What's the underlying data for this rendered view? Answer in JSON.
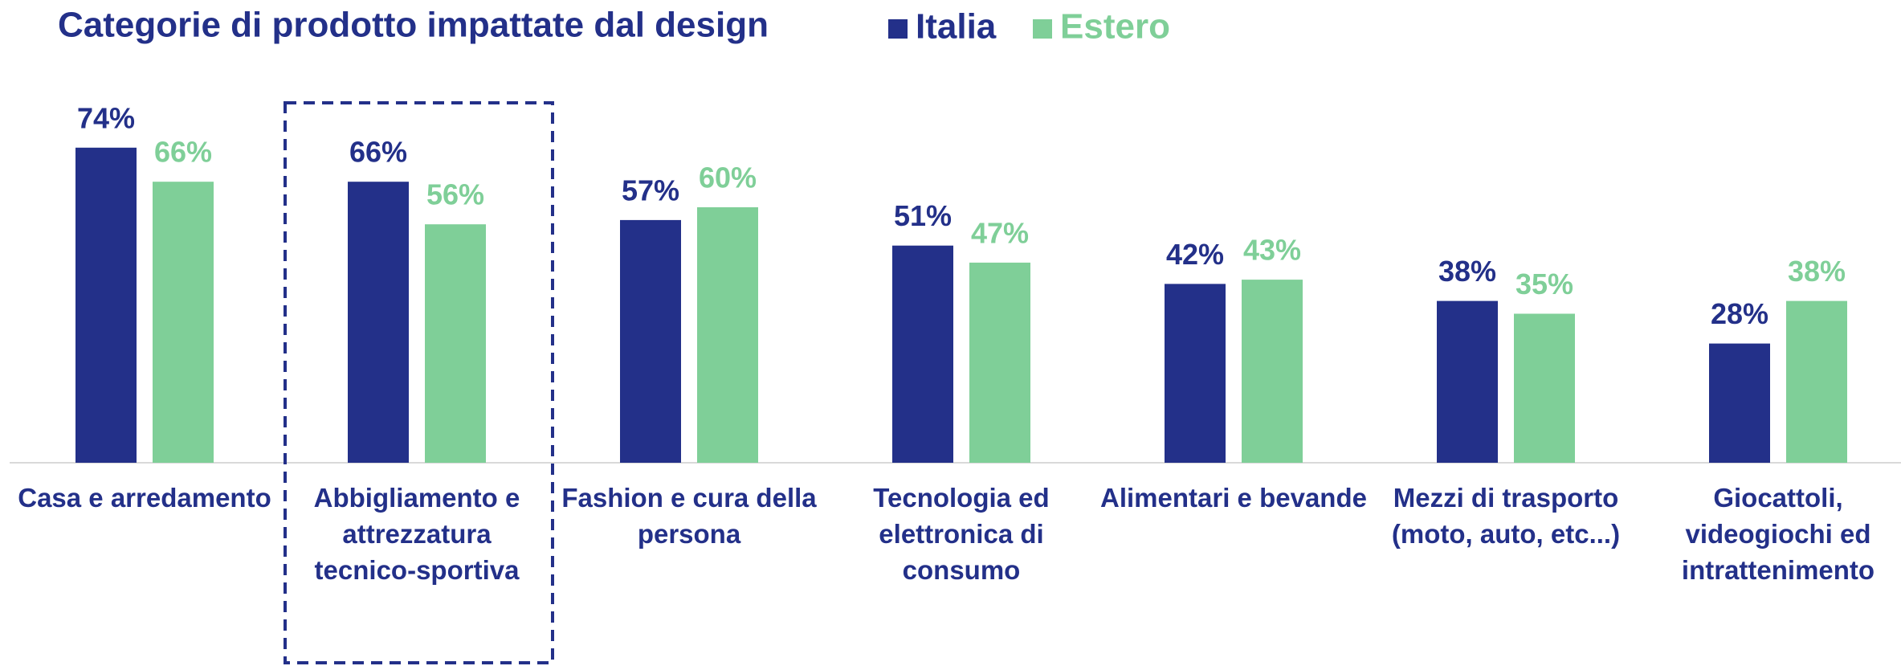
{
  "chart_data": {
    "type": "bar",
    "title": "Categorie di prodotto impattate dal design",
    "categories": [
      "Casa e arredamento",
      "Abbigliamento e attrezzatura tecnico-sportiva",
      "Fashion e cura della persona",
      "Tecnologia ed elettronica di consumo",
      "Alimentari e bevande",
      "Mezzi di trasporto (moto, auto, etc...)",
      "Giocattoli, videogiochi ed intrattenimento"
    ],
    "series": [
      {
        "name": "Italia",
        "color": "#233089",
        "values": [
          74,
          66,
          57,
          51,
          42,
          38,
          28
        ],
        "value_labels": [
          "74%",
          "66%",
          "57%",
          "51%",
          "42%",
          "38%",
          "28%"
        ]
      },
      {
        "name": "Estero",
        "color": "#7fcf98",
        "values": [
          66,
          56,
          60,
          47,
          43,
          35,
          38
        ],
        "value_labels": [
          "66%",
          "56%",
          "60%",
          "47%",
          "43%",
          "35%",
          "38%"
        ]
      }
    ],
    "ylim": [
      0,
      100
    ]
  }
}
